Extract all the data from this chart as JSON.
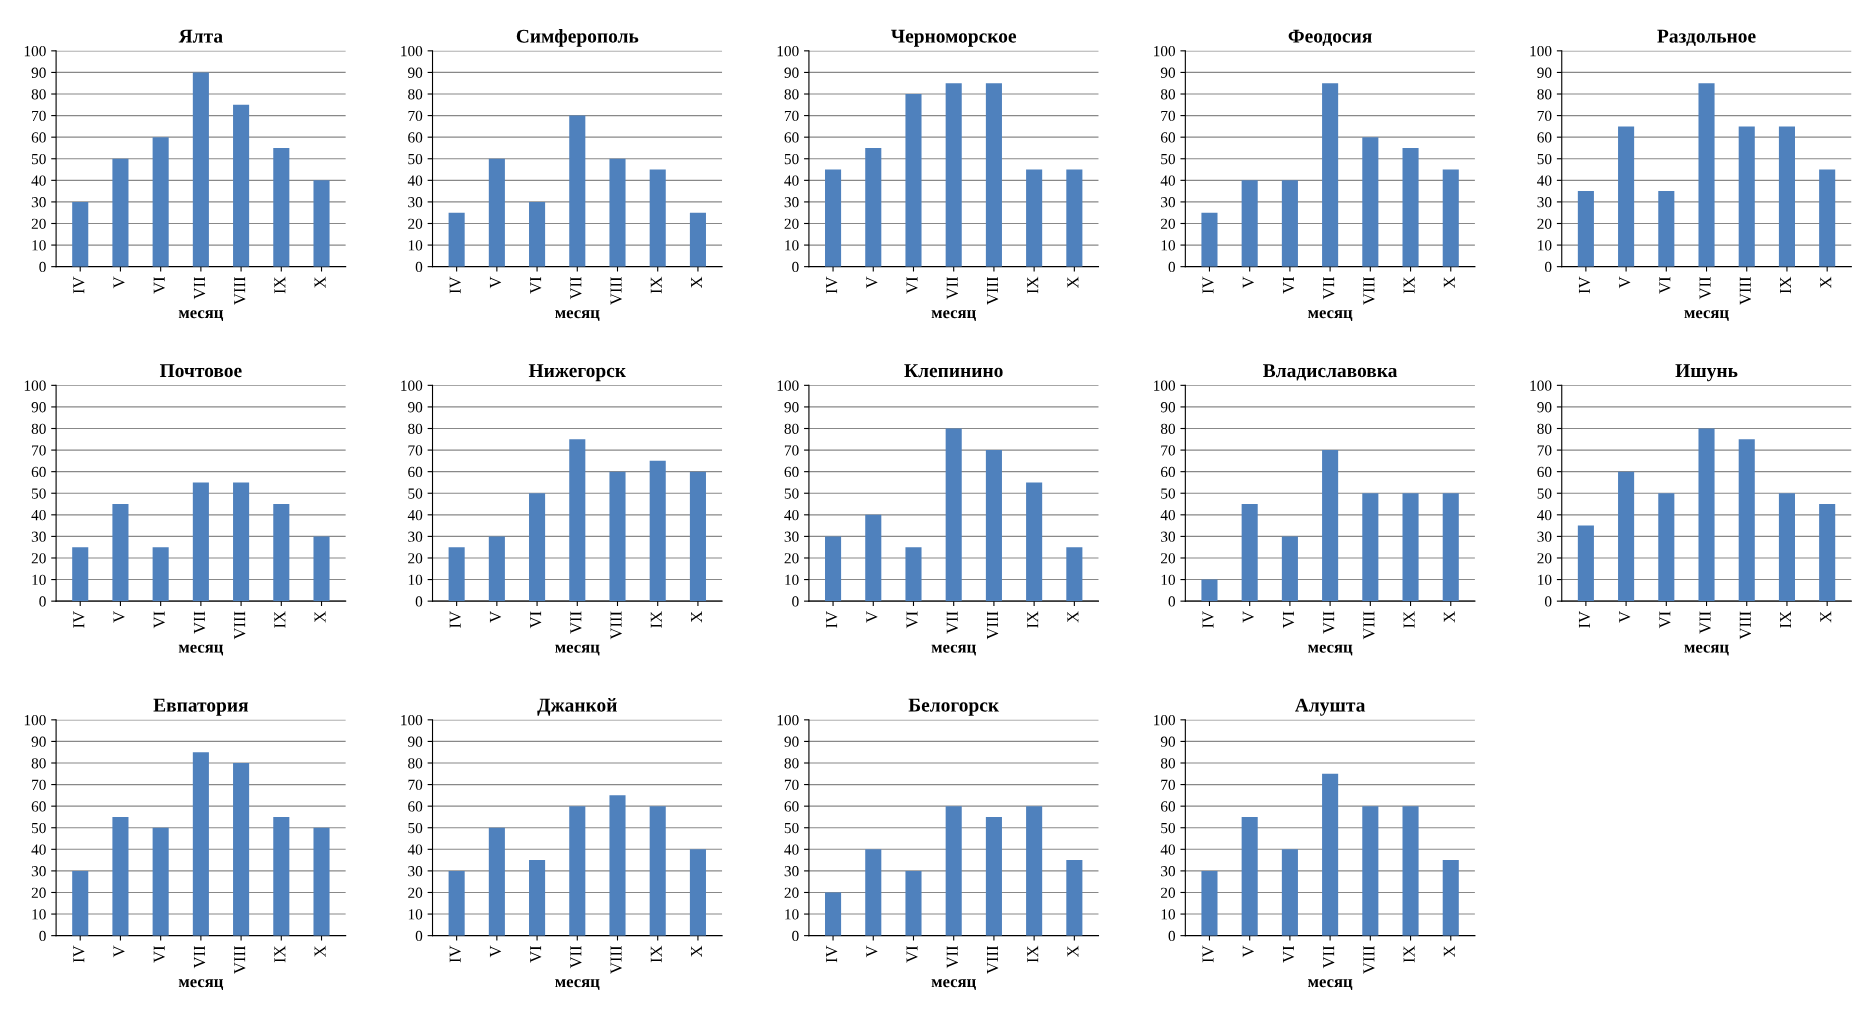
{
  "chart_data": [
    {
      "type": "bar",
      "title": "Ялта",
      "xlabel": "месяц",
      "categories": [
        "IV",
        "V",
        "VI",
        "VII",
        "VIII",
        "IX",
        "X"
      ],
      "values": [
        30,
        50,
        60,
        90,
        75,
        55,
        40
      ],
      "color": "#4f81bd",
      "ylim": [
        0,
        100
      ],
      "yticks": [
        0,
        10,
        20,
        30,
        40,
        50,
        60,
        70,
        80,
        90,
        100
      ],
      "grid": "y"
    },
    {
      "type": "bar",
      "title": "Симферополь",
      "xlabel": "месяц",
      "categories": [
        "IV",
        "V",
        "VI",
        "VII",
        "VIII",
        "IX",
        "X"
      ],
      "values": [
        25,
        50,
        30,
        70,
        50,
        45,
        25
      ],
      "color": "#4f81bd",
      "ylim": [
        0,
        100
      ],
      "yticks": [
        0,
        10,
        20,
        30,
        40,
        50,
        60,
        70,
        80,
        90,
        100
      ],
      "grid": "y"
    },
    {
      "type": "bar",
      "title": "Черноморское",
      "xlabel": "месяц",
      "categories": [
        "IV",
        "V",
        "VI",
        "VII",
        "VIII",
        "IX",
        "X"
      ],
      "values": [
        45,
        55,
        80,
        85,
        85,
        45,
        45
      ],
      "color": "#4f81bd",
      "ylim": [
        0,
        100
      ],
      "yticks": [
        0,
        10,
        20,
        30,
        40,
        50,
        60,
        70,
        80,
        90,
        100
      ],
      "grid": "y"
    },
    {
      "type": "bar",
      "title": "Феодосия",
      "xlabel": "месяц",
      "categories": [
        "IV",
        "V",
        "VI",
        "VII",
        "VIII",
        "IX",
        "X"
      ],
      "values": [
        25,
        40,
        40,
        85,
        60,
        55,
        45
      ],
      "color": "#4f81bd",
      "ylim": [
        0,
        100
      ],
      "yticks": [
        0,
        10,
        20,
        30,
        40,
        50,
        60,
        70,
        80,
        90,
        100
      ],
      "grid": "y"
    },
    {
      "type": "bar",
      "title": "Раздольное",
      "xlabel": "месяц",
      "categories": [
        "IV",
        "V",
        "VI",
        "VII",
        "VIII",
        "IX",
        "X"
      ],
      "values": [
        35,
        65,
        35,
        85,
        65,
        65,
        45
      ],
      "color": "#4f81bd",
      "ylim": [
        0,
        100
      ],
      "yticks": [
        0,
        10,
        20,
        30,
        40,
        50,
        60,
        70,
        80,
        90,
        100
      ],
      "grid": "y"
    },
    {
      "type": "bar",
      "title": "Почтовое",
      "xlabel": "месяц",
      "categories": [
        "IV",
        "V",
        "VI",
        "VII",
        "VIII",
        "IX",
        "X"
      ],
      "values": [
        25,
        45,
        25,
        55,
        55,
        45,
        30
      ],
      "color": "#4f81bd",
      "ylim": [
        0,
        100
      ],
      "yticks": [
        0,
        10,
        20,
        30,
        40,
        50,
        60,
        70,
        80,
        90,
        100
      ],
      "grid": "y"
    },
    {
      "type": "bar",
      "title": "Нижегорск",
      "xlabel": "месяц",
      "categories": [
        "IV",
        "V",
        "VI",
        "VII",
        "VIII",
        "IX",
        "X"
      ],
      "values": [
        25,
        30,
        50,
        75,
        60,
        65,
        60
      ],
      "color": "#4f81bd",
      "ylim": [
        0,
        100
      ],
      "yticks": [
        0,
        10,
        20,
        30,
        40,
        50,
        60,
        70,
        80,
        90,
        100
      ],
      "grid": "y"
    },
    {
      "type": "bar",
      "title": "Клепинино",
      "xlabel": "месяц",
      "categories": [
        "IV",
        "V",
        "VI",
        "VII",
        "VIII",
        "IX",
        "X"
      ],
      "values": [
        30,
        40,
        25,
        80,
        70,
        55,
        25
      ],
      "color": "#4f81bd",
      "ylim": [
        0,
        100
      ],
      "yticks": [
        0,
        10,
        20,
        30,
        40,
        50,
        60,
        70,
        80,
        90,
        100
      ],
      "grid": "y"
    },
    {
      "type": "bar",
      "title": "Владиславовка",
      "xlabel": "месяц",
      "categories": [
        "IV",
        "V",
        "VI",
        "VII",
        "VIII",
        "IX",
        "X"
      ],
      "values": [
        10,
        45,
        30,
        70,
        50,
        50,
        50
      ],
      "color": "#4f81bd",
      "ylim": [
        0,
        100
      ],
      "yticks": [
        0,
        10,
        20,
        30,
        40,
        50,
        60,
        70,
        80,
        90,
        100
      ],
      "grid": "y"
    },
    {
      "type": "bar",
      "title": "Ишунь",
      "xlabel": "месяц",
      "categories": [
        "IV",
        "V",
        "VI",
        "VII",
        "VIII",
        "IX",
        "X"
      ],
      "values": [
        35,
        60,
        50,
        80,
        75,
        50,
        45
      ],
      "color": "#4f81bd",
      "ylim": [
        0,
        100
      ],
      "yticks": [
        0,
        10,
        20,
        30,
        40,
        50,
        60,
        70,
        80,
        90,
        100
      ],
      "grid": "y"
    },
    {
      "type": "bar",
      "title": "Евпатория",
      "xlabel": "месяц",
      "categories": [
        "IV",
        "V",
        "VI",
        "VII",
        "VIII",
        "IX",
        "X"
      ],
      "values": [
        30,
        55,
        50,
        85,
        80,
        55,
        50
      ],
      "color": "#4f81bd",
      "ylim": [
        0,
        100
      ],
      "yticks": [
        0,
        10,
        20,
        30,
        40,
        50,
        60,
        70,
        80,
        90,
        100
      ],
      "grid": "y"
    },
    {
      "type": "bar",
      "title": "Джанкой",
      "xlabel": "месяц",
      "categories": [
        "IV",
        "V",
        "VI",
        "VII",
        "VIII",
        "IX",
        "X"
      ],
      "values": [
        30,
        50,
        35,
        60,
        65,
        60,
        40
      ],
      "color": "#4f81bd",
      "ylim": [
        0,
        100
      ],
      "yticks": [
        0,
        10,
        20,
        30,
        40,
        50,
        60,
        70,
        80,
        90,
        100
      ],
      "grid": "y"
    },
    {
      "type": "bar",
      "title": "Белогорск",
      "xlabel": "месяц",
      "categories": [
        "IV",
        "V",
        "VI",
        "VII",
        "VIII",
        "IX",
        "X"
      ],
      "values": [
        20,
        40,
        30,
        60,
        55,
        60,
        35
      ],
      "color": "#4f81bd",
      "ylim": [
        0,
        100
      ],
      "yticks": [
        0,
        10,
        20,
        30,
        40,
        50,
        60,
        70,
        80,
        90,
        100
      ],
      "grid": "y"
    },
    {
      "type": "bar",
      "title": "Алушта",
      "xlabel": "месяц",
      "categories": [
        "IV",
        "V",
        "VI",
        "VII",
        "VIII",
        "IX",
        "X"
      ],
      "values": [
        30,
        55,
        40,
        75,
        60,
        60,
        35
      ],
      "color": "#4f81bd",
      "ylim": [
        0,
        100
      ],
      "yticks": [
        0,
        10,
        20,
        30,
        40,
        50,
        60,
        70,
        80,
        90,
        100
      ],
      "grid": "y"
    }
  ]
}
